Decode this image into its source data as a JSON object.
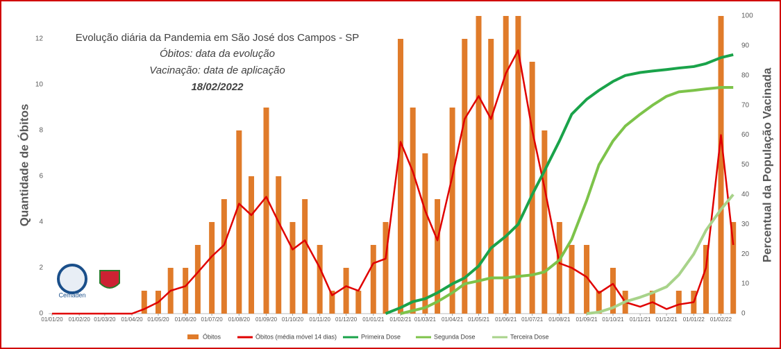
{
  "chart_data": {
    "type": "bar_line",
    "title": "Evolução diária da Pandemia em São José dos Campos - SP",
    "subtitle": [
      "Óbitos: data da evolução",
      "Vacinação: data de aplicação",
      "18/02/2022"
    ],
    "logo_label": "Cemaden",
    "ylabel": "Quantidade de Óbitos",
    "y2label": "Percentual da População Vacinada",
    "x": [
      "2020-01-01",
      "2020-01-15",
      "2020-02-01",
      "2020-02-15",
      "2020-03-01",
      "2020-03-15",
      "2020-04-01",
      "2020-04-15",
      "2020-05-01",
      "2020-05-15",
      "2020-06-01",
      "2020-06-15",
      "2020-07-01",
      "2020-07-15",
      "2020-08-01",
      "2020-08-15",
      "2020-09-01",
      "2020-09-15",
      "2020-10-01",
      "2020-10-15",
      "2020-11-01",
      "2020-11-15",
      "2020-12-01",
      "2020-12-15",
      "2021-01-01",
      "2021-01-15",
      "2021-02-01",
      "2021-02-15",
      "2021-03-01",
      "2021-03-15",
      "2021-04-01",
      "2021-04-15",
      "2021-05-01",
      "2021-05-15",
      "2021-06-01",
      "2021-06-15",
      "2021-07-01",
      "2021-07-15",
      "2021-08-01",
      "2021-08-15",
      "2021-09-01",
      "2021-09-15",
      "2021-10-01",
      "2021-10-15",
      "2021-11-01",
      "2021-11-15",
      "2021-12-01",
      "2021-12-15",
      "2022-01-01",
      "2022-01-15",
      "2022-02-01",
      "2022-02-15"
    ],
    "xlim": [
      "2020-01-01",
      "2022-02-18"
    ],
    "xticks": [
      {
        "value": "2020-01-01",
        "label": "01/01/20"
      },
      {
        "value": "2020-02-01",
        "label": "01/02/20"
      },
      {
        "value": "2020-03-01",
        "label": "01/03/20"
      },
      {
        "value": "2020-04-01",
        "label": "01/04/20"
      },
      {
        "value": "2020-05-01",
        "label": "01/05/20"
      },
      {
        "value": "2020-06-01",
        "label": "01/06/20"
      },
      {
        "value": "2020-07-01",
        "label": "01/07/20"
      },
      {
        "value": "2020-08-01",
        "label": "01/08/20"
      },
      {
        "value": "2020-09-01",
        "label": "01/09/20"
      },
      {
        "value": "2020-10-01",
        "label": "01/10/20"
      },
      {
        "value": "2020-11-01",
        "label": "01/11/20"
      },
      {
        "value": "2020-12-01",
        "label": "01/12/20"
      },
      {
        "value": "2021-01-01",
        "label": "01/01/21"
      },
      {
        "value": "2021-02-01",
        "label": "01/02/21"
      },
      {
        "value": "2021-03-01",
        "label": "01/03/21"
      },
      {
        "value": "2021-04-01",
        "label": "01/04/21"
      },
      {
        "value": "2021-05-01",
        "label": "01/05/21"
      },
      {
        "value": "2021-06-01",
        "label": "01/06/21"
      },
      {
        "value": "2021-07-01",
        "label": "01/07/21"
      },
      {
        "value": "2021-08-01",
        "label": "01/08/21"
      },
      {
        "value": "2021-09-01",
        "label": "01/09/21"
      },
      {
        "value": "2021-10-01",
        "label": "01/10/21"
      },
      {
        "value": "2021-11-01",
        "label": "01/11/21"
      },
      {
        "value": "2021-12-01",
        "label": "01/12/21"
      },
      {
        "value": "2022-01-01",
        "label": "01/01/22"
      },
      {
        "value": "2022-02-01",
        "label": "01/02/22"
      }
    ],
    "ylim": [
      0,
      13
    ],
    "yticks": [
      0,
      2,
      4,
      6,
      8,
      10,
      12
    ],
    "y2lim": [
      0,
      100
    ],
    "y2ticks": [
      0,
      10,
      20,
      30,
      40,
      50,
      60,
      70,
      80,
      90,
      100
    ],
    "series": [
      {
        "name": "Óbitos",
        "kind": "bar",
        "color": "#e07b2a",
        "values": [
          0,
          0,
          0,
          0,
          0,
          0,
          0,
          1,
          1,
          2,
          2,
          3,
          4,
          5,
          8,
          6,
          9,
          6,
          4,
          5,
          3,
          1,
          2,
          1,
          3,
          4,
          12,
          9,
          7,
          5,
          9,
          12,
          13,
          12,
          13,
          13,
          11,
          8,
          4,
          3,
          3,
          1,
          2,
          1,
          0,
          1,
          0,
          1,
          1,
          3,
          13,
          4
        ]
      },
      {
        "name": "Óbitos (média móvel 14 dias)",
        "kind": "line",
        "color": "#e00000",
        "values": [
          0,
          0,
          0,
          0,
          0,
          0,
          0,
          0.2,
          0.5,
          1.0,
          1.2,
          1.8,
          2.5,
          3.0,
          4.8,
          4.3,
          5.1,
          4.0,
          2.8,
          3.2,
          2.0,
          0.8,
          1.2,
          1.0,
          2.2,
          2.4,
          7.5,
          6.2,
          4.5,
          3.2,
          6.0,
          8.5,
          9.5,
          8.5,
          10.5,
          11.5,
          8.0,
          5.5,
          2.2,
          2.0,
          1.6,
          0.9,
          1.3,
          0.5,
          0.3,
          0.5,
          0.2,
          0.4,
          0.5,
          2.0,
          7.8,
          3.0
        ]
      },
      {
        "name": "Primeira Dose",
        "kind": "line",
        "axis": "y2",
        "color": "#1aa34a",
        "values": [
          null,
          null,
          null,
          null,
          null,
          null,
          null,
          null,
          null,
          null,
          null,
          null,
          null,
          null,
          null,
          null,
          null,
          null,
          null,
          null,
          null,
          null,
          null,
          null,
          null,
          0,
          2,
          4,
          5,
          7,
          10,
          12,
          16,
          22,
          26,
          30,
          40,
          48,
          58,
          67,
          72,
          75,
          78,
          80,
          81,
          81.5,
          82,
          82.5,
          83,
          84,
          86,
          87
        ]
      },
      {
        "name": "Segunda Dose",
        "kind": "line",
        "axis": "y2",
        "color": "#7dc34a",
        "values": [
          null,
          null,
          null,
          null,
          null,
          null,
          null,
          null,
          null,
          null,
          null,
          null,
          null,
          null,
          null,
          null,
          null,
          null,
          null,
          null,
          null,
          null,
          null,
          null,
          null,
          null,
          0,
          1,
          2,
          4,
          7,
          10,
          11,
          12,
          12,
          12.5,
          13,
          14,
          18,
          25,
          38,
          50,
          58,
          63,
          67,
          70,
          73,
          74.5,
          75,
          75.5,
          76,
          76
        ]
      },
      {
        "name": "Terceira Dose",
        "kind": "line",
        "axis": "y2",
        "color": "#a8d38a",
        "values": [
          null,
          null,
          null,
          null,
          null,
          null,
          null,
          null,
          null,
          null,
          null,
          null,
          null,
          null,
          null,
          null,
          null,
          null,
          null,
          null,
          null,
          null,
          null,
          null,
          null,
          null,
          null,
          null,
          null,
          null,
          null,
          null,
          null,
          null,
          null,
          null,
          null,
          null,
          null,
          null,
          0,
          0.5,
          2,
          4,
          5.5,
          7,
          9,
          13,
          20,
          28,
          35,
          40
        ]
      }
    ],
    "legend": "bottom"
  }
}
